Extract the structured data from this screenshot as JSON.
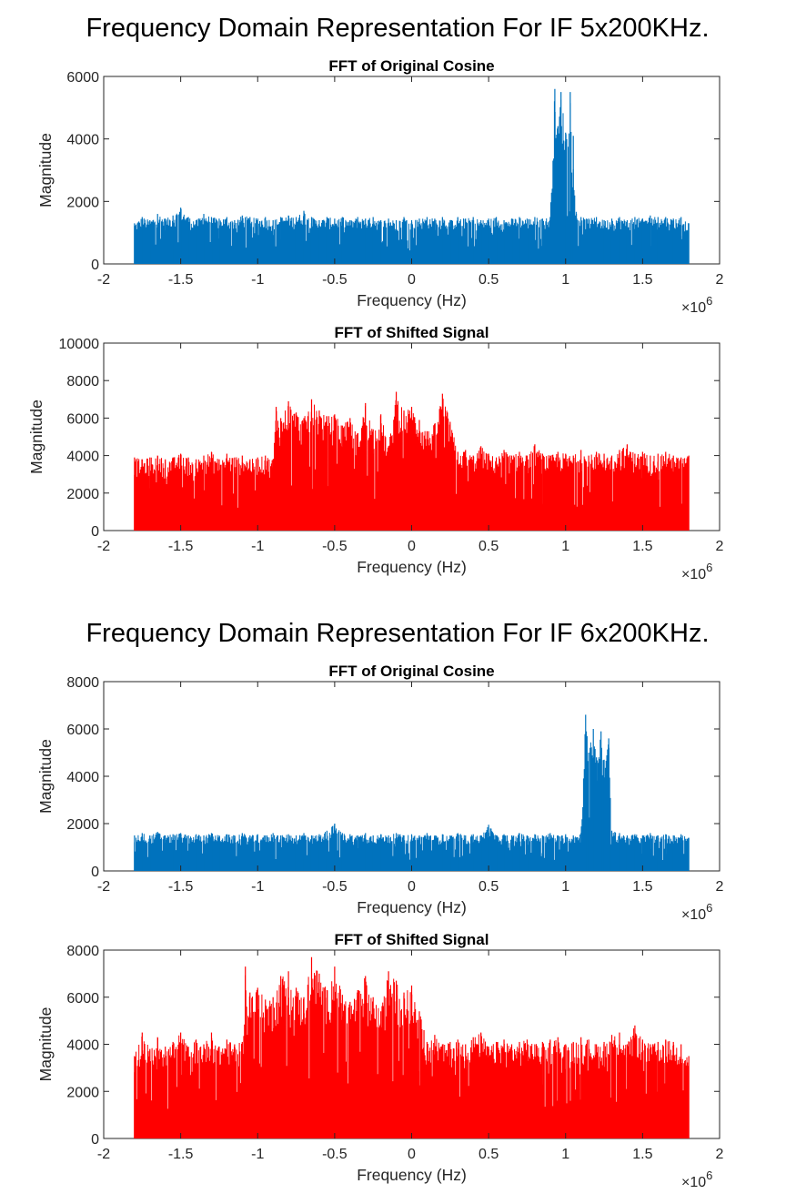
{
  "figure_titles": [
    "Frequency Domain Representation For IF 5x200KHz.",
    "Frequency Domain Representation For IF 6x200KHz."
  ],
  "chart_data": [
    {
      "type": "line",
      "title": "FFT of Original Cosine",
      "xlabel": "Frequency (Hz)",
      "ylabel": "Magnitude",
      "x_multiplier": "×10^6",
      "xlim": [
        -2,
        2
      ],
      "ylim": [
        0,
        6000
      ],
      "x_ticks": [
        -2,
        -1.5,
        -1,
        -0.5,
        0,
        0.5,
        1,
        1.5,
        2
      ],
      "y_ticks": [
        0,
        2000,
        4000,
        6000
      ],
      "grid": false,
      "color": "#0072BD",
      "series": [
        {
          "x": [
            -1.8,
            -1.75,
            -1.7,
            -1.65,
            -1.6,
            -1.55,
            -1.5,
            -1.45,
            -1.4,
            -1.35,
            -1.3,
            -1.25,
            -1.2,
            -1.15,
            -1.1,
            -1.05,
            -1.0,
            -0.95,
            -0.9,
            -0.85,
            -0.8,
            -0.75,
            -0.7,
            -0.65,
            -0.6,
            -0.55,
            -0.5,
            -0.45,
            -0.4,
            -0.35,
            -0.3,
            -0.25,
            -0.2,
            -0.15,
            -0.1,
            -0.05,
            0.0,
            0.05,
            0.1,
            0.15,
            0.2,
            0.25,
            0.3,
            0.35,
            0.4,
            0.45,
            0.5,
            0.55,
            0.6,
            0.65,
            0.7,
            0.75,
            0.8,
            0.85,
            0.9,
            0.93,
            0.95,
            0.97,
            1.0,
            1.03,
            1.05,
            1.07,
            1.1,
            1.15,
            1.2,
            1.25,
            1.3,
            1.35,
            1.4,
            1.45,
            1.5,
            1.55,
            1.6,
            1.65,
            1.7,
            1.75,
            1.8
          ],
          "y": [
            1300,
            1500,
            1400,
            1600,
            1450,
            1550,
            1800,
            1500,
            1400,
            1600,
            1500,
            1450,
            1500,
            1400,
            1550,
            1500,
            1450,
            1500,
            1400,
            1500,
            1550,
            1500,
            1700,
            1500,
            1400,
            1500,
            1450,
            1500,
            1400,
            1500,
            1450,
            1500,
            1400,
            1450,
            1400,
            1500,
            1400,
            1450,
            1500,
            1450,
            1500,
            1400,
            1500,
            1450,
            1500,
            1400,
            1450,
            1500,
            1400,
            1450,
            1500,
            1450,
            1500,
            1450,
            1500,
            5600,
            4400,
            5500,
            4200,
            5500,
            4100,
            1600,
            1500,
            1450,
            1500,
            1400,
            1450,
            1500,
            1400,
            1500,
            1450,
            1550,
            1500,
            1500,
            1450,
            1500,
            1300
          ]
        }
      ]
    },
    {
      "type": "line",
      "title": "FFT of Shifted Signal",
      "xlabel": "Frequency (Hz)",
      "ylabel": "Magnitude",
      "x_multiplier": "×10^6",
      "xlim": [
        -2,
        2
      ],
      "ylim": [
        0,
        10000
      ],
      "x_ticks": [
        -2,
        -1.5,
        -1,
        -0.5,
        0,
        0.5,
        1,
        1.5,
        2
      ],
      "y_ticks": [
        0,
        2000,
        4000,
        6000,
        8000,
        10000
      ],
      "grid": false,
      "color": "#FF0000",
      "series": [
        {
          "x": [
            -1.8,
            -1.75,
            -1.7,
            -1.65,
            -1.6,
            -1.55,
            -1.5,
            -1.45,
            -1.4,
            -1.35,
            -1.3,
            -1.25,
            -1.2,
            -1.15,
            -1.1,
            -1.05,
            -1.0,
            -0.95,
            -0.9,
            -0.88,
            -0.85,
            -0.8,
            -0.75,
            -0.7,
            -0.65,
            -0.6,
            -0.55,
            -0.5,
            -0.45,
            -0.4,
            -0.35,
            -0.3,
            -0.25,
            -0.2,
            -0.15,
            -0.1,
            -0.05,
            0.0,
            0.05,
            0.1,
            0.15,
            0.2,
            0.25,
            0.3,
            0.35,
            0.4,
            0.45,
            0.5,
            0.55,
            0.6,
            0.65,
            0.7,
            0.75,
            0.8,
            0.85,
            0.9,
            0.95,
            1.0,
            1.05,
            1.1,
            1.15,
            1.2,
            1.25,
            1.3,
            1.35,
            1.4,
            1.45,
            1.5,
            1.55,
            1.6,
            1.65,
            1.7,
            1.75,
            1.8
          ],
          "y": [
            3900,
            3800,
            3900,
            4000,
            3800,
            3900,
            4100,
            3900,
            3800,
            4000,
            4200,
            3800,
            4100,
            3900,
            4000,
            3800,
            3900,
            4000,
            3800,
            6600,
            6000,
            6900,
            6300,
            6000,
            7000,
            6400,
            6100,
            6200,
            5600,
            6000,
            5200,
            6800,
            5400,
            6200,
            4500,
            7400,
            6400,
            6600,
            5900,
            5300,
            5700,
            7300,
            5800,
            4200,
            4300,
            4000,
            4500,
            4100,
            3900,
            4300,
            4000,
            4200,
            4000,
            4600,
            4100,
            4000,
            4200,
            4100,
            4000,
            4300,
            4000,
            4200,
            4100,
            4000,
            4300,
            4600,
            4100,
            4200,
            4000,
            4100,
            4200,
            4000,
            3900,
            4000
          ]
        }
      ]
    },
    {
      "type": "line",
      "title": "FFT of Original Cosine",
      "xlabel": "Frequency (Hz)",
      "ylabel": "Magnitude",
      "x_multiplier": "×10^6",
      "xlim": [
        -2,
        2
      ],
      "ylim": [
        0,
        8000
      ],
      "x_ticks": [
        -2,
        -1.5,
        -1,
        -0.5,
        0,
        0.5,
        1,
        1.5,
        2
      ],
      "y_ticks": [
        0,
        2000,
        4000,
        6000,
        8000
      ],
      "grid": false,
      "color": "#0072BD",
      "series": [
        {
          "x": [
            -1.8,
            -1.75,
            -1.7,
            -1.65,
            -1.6,
            -1.55,
            -1.5,
            -1.45,
            -1.4,
            -1.35,
            -1.3,
            -1.25,
            -1.2,
            -1.15,
            -1.1,
            -1.05,
            -1.0,
            -0.95,
            -0.9,
            -0.85,
            -0.8,
            -0.75,
            -0.7,
            -0.65,
            -0.6,
            -0.55,
            -0.5,
            -0.45,
            -0.4,
            -0.35,
            -0.3,
            -0.25,
            -0.2,
            -0.15,
            -0.1,
            -0.05,
            0.0,
            0.05,
            0.1,
            0.15,
            0.2,
            0.25,
            0.3,
            0.35,
            0.4,
            0.45,
            0.5,
            0.55,
            0.6,
            0.65,
            0.7,
            0.75,
            0.8,
            0.85,
            0.9,
            0.95,
            1.0,
            1.05,
            1.1,
            1.13,
            1.15,
            1.18,
            1.2,
            1.23,
            1.25,
            1.28,
            1.3,
            1.35,
            1.4,
            1.45,
            1.5,
            1.55,
            1.6,
            1.65,
            1.7,
            1.75,
            1.8
          ],
          "y": [
            1500,
            1600,
            1500,
            1650,
            1500,
            1550,
            1600,
            1500,
            1550,
            1500,
            1600,
            1500,
            1550,
            1500,
            1600,
            1500,
            1550,
            1500,
            1600,
            1500,
            1550,
            1500,
            1600,
            1500,
            1550,
            1700,
            2000,
            1600,
            1550,
            1500,
            1600,
            1500,
            1550,
            1500,
            1600,
            1500,
            1550,
            1500,
            1600,
            1500,
            1550,
            1500,
            1600,
            1500,
            1550,
            1500,
            1950,
            1500,
            1550,
            1500,
            1600,
            1500,
            1550,
            1500,
            1600,
            1500,
            1550,
            1500,
            1600,
            6600,
            5000,
            6000,
            4800,
            5900,
            4700,
            5600,
            1700,
            1600,
            1500,
            1550,
            1500,
            1600,
            1500,
            1550,
            1500,
            1550,
            1400
          ]
        }
      ]
    },
    {
      "type": "line",
      "title": "FFT of Shifted Signal",
      "xlabel": "Frequency (Hz)",
      "ylabel": "Magnitude",
      "x_multiplier": "×10^6",
      "xlim": [
        -2,
        2
      ],
      "ylim": [
        0,
        8000
      ],
      "x_ticks": [
        -2,
        -1.5,
        -1,
        -0.5,
        0,
        0.5,
        1,
        1.5,
        2
      ],
      "y_ticks": [
        0,
        2000,
        4000,
        6000,
        8000
      ],
      "grid": false,
      "color": "#FF0000",
      "series": [
        {
          "x": [
            -1.8,
            -1.75,
            -1.7,
            -1.65,
            -1.6,
            -1.55,
            -1.5,
            -1.45,
            -1.4,
            -1.35,
            -1.3,
            -1.25,
            -1.2,
            -1.15,
            -1.1,
            -1.08,
            -1.05,
            -1.0,
            -0.95,
            -0.9,
            -0.85,
            -0.8,
            -0.75,
            -0.7,
            -0.65,
            -0.6,
            -0.55,
            -0.5,
            -0.45,
            -0.4,
            -0.35,
            -0.3,
            -0.25,
            -0.2,
            -0.15,
            -0.1,
            -0.05,
            0.0,
            0.05,
            0.08,
            0.1,
            0.15,
            0.2,
            0.25,
            0.3,
            0.35,
            0.4,
            0.45,
            0.5,
            0.55,
            0.6,
            0.65,
            0.7,
            0.75,
            0.8,
            0.85,
            0.9,
            0.95,
            1.0,
            1.05,
            1.1,
            1.15,
            1.2,
            1.25,
            1.3,
            1.35,
            1.4,
            1.45,
            1.5,
            1.55,
            1.6,
            1.65,
            1.7,
            1.75,
            1.8
          ],
          "y": [
            3500,
            4500,
            3800,
            4300,
            3900,
            4100,
            4500,
            3900,
            4200,
            4000,
            4500,
            3900,
            4200,
            4000,
            4100,
            7300,
            6200,
            6400,
            5900,
            6000,
            6900,
            7100,
            6400,
            6000,
            7700,
            7000,
            6300,
            7300,
            6100,
            5800,
            6300,
            6900,
            6000,
            5400,
            7100,
            6700,
            6200,
            6500,
            5400,
            4600,
            4100,
            4400,
            4000,
            4100,
            4200,
            4000,
            4300,
            4500,
            3900,
            4100,
            4200,
            4000,
            4100,
            4200,
            4000,
            4100,
            4200,
            4300,
            4000,
            4100,
            4300,
            4200,
            4000,
            4100,
            4400,
            4500,
            4000,
            4800,
            4200,
            4000,
            4100,
            4200,
            4100,
            4000,
            3500
          ]
        }
      ]
    }
  ]
}
